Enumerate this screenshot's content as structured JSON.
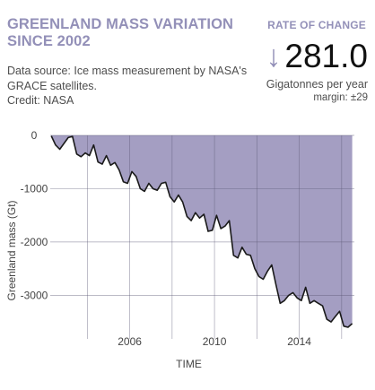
{
  "header": {
    "title_line1": "GREENLAND MASS VARIATION",
    "title_line2": "SINCE 2002",
    "source_line1": "Data source: Ice mass measurement by NASA's",
    "source_line2": "GRACE satellites.",
    "source_line3": "Credit: NASA"
  },
  "rate_of_change": {
    "label": "RATE OF CHANGE",
    "arrow_icon": "down-arrow",
    "value": "281.0",
    "unit": "Gigatonnes per year",
    "margin": "margin: ±29"
  },
  "colors": {
    "accent": "#9390b8",
    "area_fill": "#a49ec2",
    "line": "#1a1a1a"
  },
  "chart_data": {
    "type": "area",
    "title": "",
    "xlabel": "TIME",
    "ylabel": "Greenland mass (Gt)",
    "xlim": [
      2002.25,
      2016.6
    ],
    "ylim": [
      -3650,
      0
    ],
    "x_ticks": [
      2004,
      2006,
      2008,
      2010,
      2012,
      2014,
      2016
    ],
    "x_tick_labels": [
      "",
      "2006",
      "",
      "2010",
      "",
      "2014",
      ""
    ],
    "y_ticks": [
      0,
      -1000,
      -2000,
      -3000
    ],
    "y_tick_labels": [
      "0",
      "-1000",
      "-2000",
      "-3000"
    ],
    "grid": true,
    "series": [
      {
        "x": [
          2002.3,
          2002.5,
          2002.7,
          2002.9,
          2003.1,
          2003.3,
          2003.5,
          2003.7,
          2003.9,
          2004.1,
          2004.3,
          2004.5,
          2004.7,
          2004.9,
          2005.1,
          2005.3,
          2005.5,
          2005.7,
          2005.9,
          2006.1,
          2006.3,
          2006.5,
          2006.7,
          2006.9,
          2007.1,
          2007.3,
          2007.5,
          2007.7,
          2007.9,
          2008.1,
          2008.3,
          2008.5,
          2008.7,
          2008.9,
          2009.1,
          2009.3,
          2009.5,
          2009.7,
          2009.9,
          2010.1,
          2010.3,
          2010.5,
          2010.7,
          2010.9,
          2011.1,
          2011.3,
          2011.5,
          2011.7,
          2011.9,
          2012.1,
          2012.3,
          2012.5,
          2012.7,
          2012.9,
          2013.1,
          2013.3,
          2013.5,
          2013.7,
          2013.9,
          2014.1,
          2014.3,
          2014.5,
          2014.7,
          2014.9,
          2015.1,
          2015.3,
          2015.5,
          2015.7,
          2015.9,
          2016.1,
          2016.3,
          2016.5
        ],
        "y": [
          -10,
          -180,
          -260,
          -150,
          -40,
          -20,
          -350,
          -400,
          -330,
          -380,
          -180,
          -500,
          -540,
          -380,
          -560,
          -510,
          -650,
          -870,
          -900,
          -680,
          -770,
          -1000,
          -1050,
          -900,
          -1000,
          -1030,
          -900,
          -880,
          -1150,
          -1250,
          -1120,
          -1250,
          -1520,
          -1600,
          -1450,
          -1550,
          -1480,
          -1800,
          -1780,
          -1500,
          -1750,
          -1700,
          -1600,
          -2250,
          -2300,
          -2100,
          -2230,
          -2250,
          -2500,
          -2650,
          -2700,
          -2550,
          -2430,
          -2800,
          -3150,
          -3100,
          -3000,
          -2950,
          -3050,
          -3100,
          -2850,
          -3150,
          -3100,
          -3150,
          -3200,
          -3450,
          -3500,
          -3400,
          -3300,
          -3580,
          -3600,
          -3530
        ]
      }
    ]
  }
}
